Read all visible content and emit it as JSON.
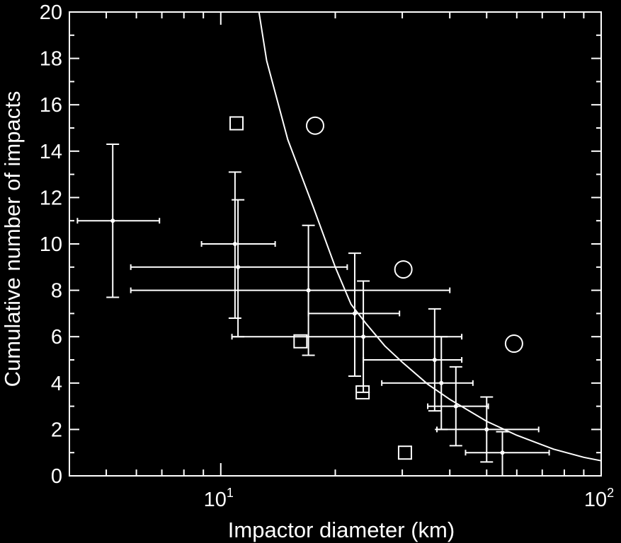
{
  "chart_data": {
    "type": "scatter",
    "title": "",
    "xlabel": "Impactor diameter (km)",
    "ylabel": "Cumulative number of impacts",
    "x_scale": "log",
    "xlim": [
      4,
      100
    ],
    "ylim": [
      0,
      20
    ],
    "x_major_ticks": [
      {
        "value": 10,
        "base": "10",
        "exp": "1"
      },
      {
        "value": 100,
        "base": "10",
        "exp": "2"
      }
    ],
    "y_ticks": [
      "0",
      "2",
      "4",
      "6",
      "8",
      "10",
      "12",
      "14",
      "16",
      "18",
      "20"
    ],
    "grid": false,
    "colors": {
      "background": "#000000",
      "foreground": "#ffffff"
    },
    "series": [
      {
        "marker": "errorbar-cross",
        "points": [
          {
            "x": 5.2,
            "y": 11,
            "xlo": 4.2,
            "xhi": 6.9,
            "ylo": 7.7,
            "yhi": 14.3
          },
          {
            "x": 10.9,
            "y": 10,
            "xlo": 8.9,
            "xhi": 13.9,
            "ylo": 6.8,
            "yhi": 13.1
          },
          {
            "x": 11.1,
            "y": 9,
            "xlo": 5.8,
            "xhi": 21.5,
            "ylo": 6.0,
            "yhi": 11.9
          },
          {
            "x": 17.0,
            "y": 8,
            "xlo": 5.8,
            "xhi": 40.0,
            "ylo": 5.2,
            "yhi": 10.8
          },
          {
            "x": 22.5,
            "y": 7,
            "xlo": 17.0,
            "xhi": 29.5,
            "ylo": 4.3,
            "yhi": 9.6
          },
          {
            "x": 23.7,
            "y": 6,
            "xlo": 10.7,
            "xhi": 43.0,
            "ylo": 3.6,
            "yhi": 8.4
          },
          {
            "x": 36.5,
            "y": 5,
            "xlo": 23.7,
            "xhi": 43.0,
            "ylo": 2.8,
            "yhi": 7.2
          },
          {
            "x": 38.0,
            "y": 4,
            "xlo": 26.5,
            "xhi": 46.0,
            "ylo": 2.0,
            "yhi": 6.0
          },
          {
            "x": 41.5,
            "y": 3,
            "xlo": 35.0,
            "xhi": 50.5,
            "ylo": 1.3,
            "yhi": 4.7
          },
          {
            "x": 50.0,
            "y": 2,
            "xlo": 37.0,
            "xhi": 68.5,
            "ylo": 0.6,
            "yhi": 3.4
          },
          {
            "x": 55.0,
            "y": 1,
            "xlo": 44.0,
            "xhi": 73.0,
            "ylo": 0.0,
            "yhi": 1.9
          }
        ]
      },
      {
        "marker": "square",
        "points": [
          {
            "x": 11.0,
            "y": 15.2
          },
          {
            "x": 16.2,
            "y": 5.8
          },
          {
            "x": 23.6,
            "y": 3.6
          },
          {
            "x": 30.5,
            "y": 1.0
          }
        ]
      },
      {
        "marker": "circle",
        "points": [
          {
            "x": 17.7,
            "y": 15.1
          },
          {
            "x": 30.2,
            "y": 8.9
          },
          {
            "x": 59.0,
            "y": 5.7
          }
        ]
      },
      {
        "marker": "line",
        "points": [
          {
            "x": 12.6,
            "y": 20.0
          },
          {
            "x": 13.2,
            "y": 17.9
          },
          {
            "x": 15.0,
            "y": 14.5
          },
          {
            "x": 17.5,
            "y": 11.6
          },
          {
            "x": 20.0,
            "y": 9.0
          },
          {
            "x": 22.0,
            "y": 7.4
          },
          {
            "x": 24.0,
            "y": 6.6
          },
          {
            "x": 27.0,
            "y": 5.6
          },
          {
            "x": 30.0,
            "y": 4.9
          },
          {
            "x": 35.0,
            "y": 3.95
          },
          {
            "x": 40.0,
            "y": 3.3
          },
          {
            "x": 50.0,
            "y": 2.35
          },
          {
            "x": 60.0,
            "y": 1.75
          },
          {
            "x": 75.0,
            "y": 1.15
          },
          {
            "x": 90.0,
            "y": 0.8
          },
          {
            "x": 100.0,
            "y": 0.65
          }
        ]
      }
    ]
  }
}
